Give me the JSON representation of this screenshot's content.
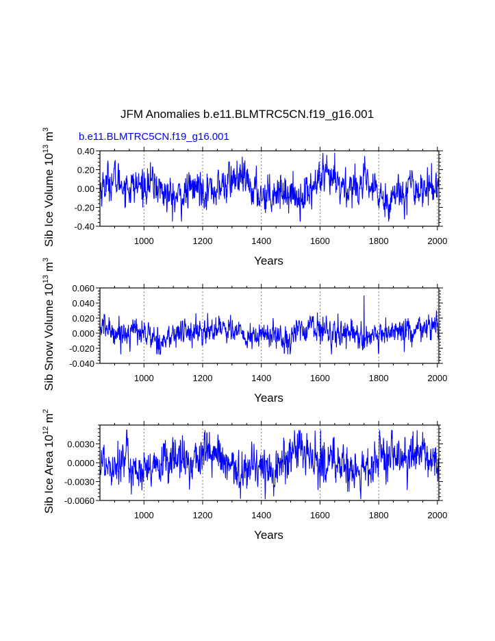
{
  "title": "JFM Anomalies b.e11.BLMTRC5CN.f19_g16.001",
  "subtitle": "b.e11.BLMTRC5CN.f19_g16.001",
  "colors": {
    "series": "#0000ff",
    "subtitle": "#0000ff",
    "axis": "#000000",
    "grid": "#555555"
  },
  "chart_data": [
    {
      "type": "line",
      "ylabel_main": "Sib Ice Volume 10",
      "ylabel_exp": "13",
      "ylabel_unit": " m",
      "ylabel_unit_exp": "3",
      "xlabel": "Years",
      "xlim": [
        850,
        2005
      ],
      "ylim": [
        -0.4,
        0.4
      ],
      "xticks": [
        1000,
        1200,
        1400,
        1600,
        1800,
        2000
      ],
      "yticks": [
        -0.4,
        -0.2,
        0.0,
        0.2,
        0.4
      ],
      "ytick_labels": [
        "-0.40",
        "-0.20",
        "0.00",
        "0.20",
        "0.40"
      ],
      "series": [
        {
          "name": "b.e11.BLMTRC5CN.f19_g16.001",
          "x": [
            850,
            2005
          ],
          "summary": {
            "mean": 0.0,
            "std": 0.1,
            "min": -0.35,
            "max": 0.38,
            "max_year": 1650
          }
        }
      ]
    },
    {
      "type": "line",
      "ylabel_main": "Sib Snow Volume 10",
      "ylabel_exp": "13",
      "ylabel_unit": " m",
      "ylabel_unit_exp": "3",
      "xlabel": "Years",
      "xlim": [
        850,
        2005
      ],
      "ylim": [
        -0.04,
        0.06
      ],
      "xticks": [
        1000,
        1200,
        1400,
        1600,
        1800,
        2000
      ],
      "yticks": [
        -0.04,
        -0.02,
        0.0,
        0.02,
        0.04,
        0.06
      ],
      "ytick_labels": [
        "-0.040",
        "-0.020",
        "0.000",
        "0.020",
        "0.040",
        "0.060"
      ],
      "series": [
        {
          "name": "b.e11.BLMTRC5CN.f19_g16.001",
          "x": [
            850,
            2005
          ],
          "summary": {
            "mean": 0.0,
            "std": 0.009,
            "min": -0.028,
            "max": 0.05,
            "max_year": 1750
          }
        }
      ]
    },
    {
      "type": "line",
      "ylabel_main": "Sib Ice Area 10",
      "ylabel_exp": "12",
      "ylabel_unit": " m",
      "ylabel_unit_exp": "2",
      "xlabel": "Years",
      "xlim": [
        850,
        2005
      ],
      "ylim": [
        -0.006,
        0.006
      ],
      "xticks": [
        1000,
        1200,
        1400,
        1600,
        1800,
        2000
      ],
      "yticks": [
        -0.006,
        -0.003,
        0.0,
        0.003
      ],
      "ytick_labels": [
        "-0.0060",
        "-0.0030",
        "0.0000",
        "0.0030"
      ],
      "series": [
        {
          "name": "b.e11.BLMTRC5CN.f19_g16.001",
          "x": [
            850,
            2005
          ],
          "summary": {
            "mean": 0.0,
            "std": 0.0018,
            "min": -0.0058,
            "max": 0.0052,
            "max_year": 1602
          }
        }
      ]
    }
  ]
}
